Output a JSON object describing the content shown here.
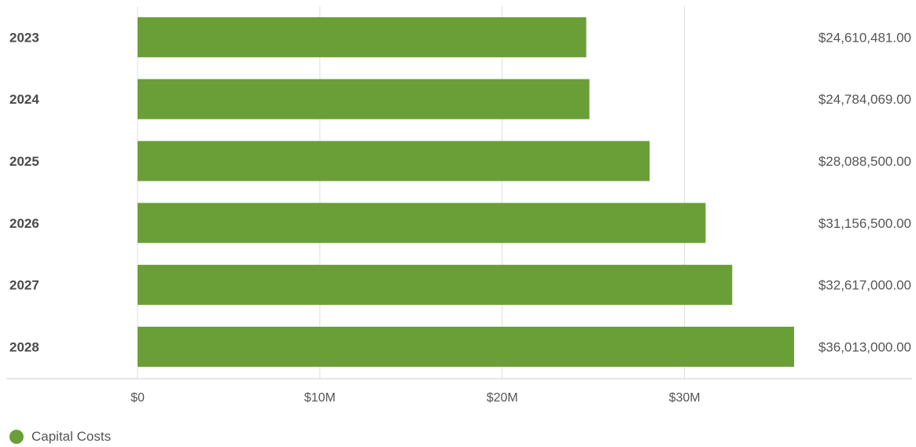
{
  "chart_data": {
    "type": "bar",
    "orientation": "horizontal",
    "categories": [
      "2023",
      "2024",
      "2025",
      "2026",
      "2027",
      "2028"
    ],
    "series": [
      {
        "name": "Capital Costs",
        "color": "#6a9f38",
        "values": [
          24610481,
          24784069,
          28088500,
          31156500,
          32617000,
          36013000
        ],
        "value_labels": [
          "$24,610,481.00",
          "$24,784,069.00",
          "$28,088,500.00",
          "$31,156,500.00",
          "$32,617,000.00",
          "$36,013,000.00"
        ]
      }
    ],
    "x_ticks": [
      0,
      10000000,
      20000000,
      30000000
    ],
    "x_tick_labels": [
      "$0",
      "$10M",
      "$20M",
      "$30M"
    ],
    "xlim": [
      0,
      36013000
    ],
    "grid": true,
    "legend_position": "bottom-left"
  }
}
